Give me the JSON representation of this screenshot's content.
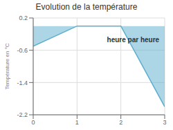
{
  "chart_data": {
    "type": "area",
    "title": "Evolution de la température",
    "ylabel": "Température en °C",
    "annotations": [
      "heure par heure"
    ],
    "x": [
      0,
      1,
      2,
      3
    ],
    "values": [
      -0.5,
      0.0,
      0.0,
      -2.0
    ],
    "color": "#5aadce",
    "xlim": [
      0,
      3
    ],
    "ylim": [
      -2.2,
      0.2
    ],
    "xticks": [
      0,
      1,
      2,
      3
    ],
    "yticks": [
      0.2,
      -0.6,
      -1.4,
      -2.2
    ],
    "grid": true
  }
}
